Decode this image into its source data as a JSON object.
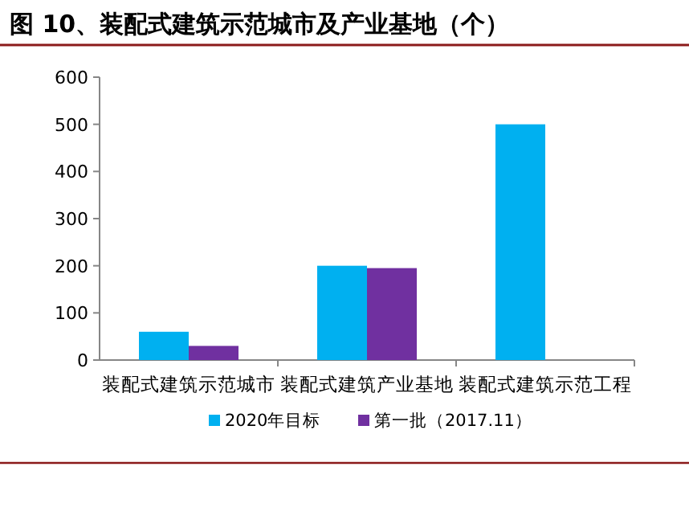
{
  "chart_data": {
    "type": "bar",
    "title": "图 10、装配式建筑示范城市及产业基地（个）",
    "categories": [
      "装配式建筑示范城市",
      "装配式建筑产业基地",
      "装配式建筑示范工程"
    ],
    "series": [
      {
        "name": "2020年目标",
        "color": "#00b0f0",
        "values": [
          60,
          200,
          500
        ]
      },
      {
        "name": "第一批（2017.11）",
        "color": "#7030a0",
        "values": [
          30,
          195,
          null
        ]
      }
    ],
    "ylim": [
      0,
      600
    ],
    "yticks": [
      0,
      100,
      200,
      300,
      400,
      500,
      600
    ],
    "legend": "bottom",
    "grid": false
  }
}
